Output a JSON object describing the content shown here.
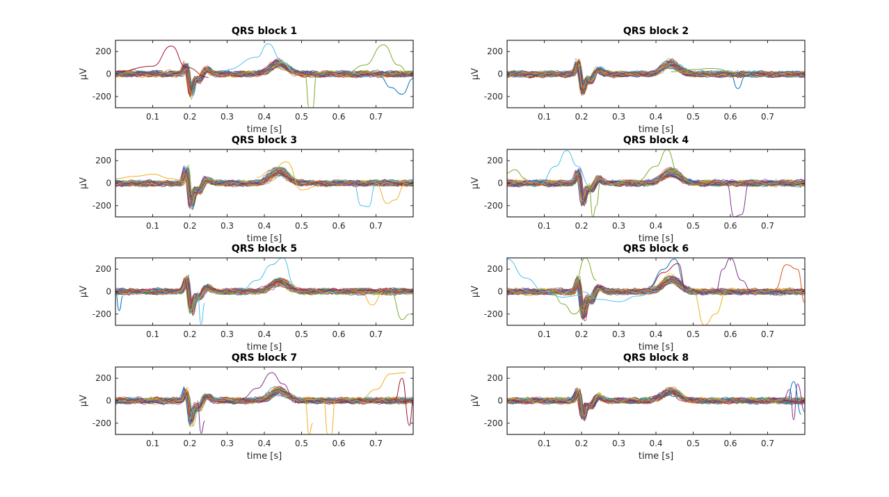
{
  "chart_data": [
    {
      "type": "line",
      "title": "QRS block 1",
      "xlabel": "time [s]",
      "ylabel": "μV",
      "xlim": [
        0,
        0.8
      ],
      "ylim": [
        -300,
        300
      ],
      "xticks": [
        "0.1",
        "0.2",
        "0.3",
        "0.4",
        "0.5",
        "0.6",
        "0.7"
      ],
      "yticks": [
        "200",
        "0",
        "-200"
      ],
      "series_count": 60,
      "waveform": {
        "q_depth": -180,
        "r_peak": 90,
        "s_depth": -90,
        "t_peak": 95
      },
      "outliers": [
        {
          "color": "#A2142F",
          "x": [
            0.0,
            0.1,
            0.15,
            0.19,
            0.25
          ],
          "y": [
            20,
            70,
            250,
            60,
            -30
          ]
        },
        {
          "color": "#4DBEEE",
          "x": [
            0.3,
            0.38,
            0.41,
            0.45,
            0.48
          ],
          "y": [
            40,
            150,
            270,
            100,
            20
          ]
        },
        {
          "color": "#77AC30",
          "x": [
            0.62,
            0.67,
            0.72,
            0.76,
            0.79
          ],
          "y": [
            10,
            80,
            260,
            80,
            0
          ]
        },
        {
          "color": "#77AC30",
          "x": [
            0.51,
            0.52,
            0.53,
            0.54
          ],
          "y": [
            -10,
            -300,
            -300,
            -10
          ]
        },
        {
          "color": "#0072BD",
          "x": [
            0.71,
            0.74,
            0.77,
            0.8
          ],
          "y": [
            -20,
            -120,
            -180,
            -40
          ]
        }
      ]
    },
    {
      "type": "line",
      "title": "QRS block 2",
      "xlabel": "time [s]",
      "ylabel": "μV",
      "xlim": [
        0,
        0.8
      ],
      "ylim": [
        -300,
        300
      ],
      "xticks": [
        "0.1",
        "0.2",
        "0.3",
        "0.4",
        "0.5",
        "0.6",
        "0.7"
      ],
      "yticks": [
        "200",
        "0",
        "-200"
      ],
      "series_count": 60,
      "waveform": {
        "q_depth": -160,
        "r_peak": 120,
        "s_depth": -110,
        "t_peak": 90
      },
      "outliers": [
        {
          "color": "#0072BD",
          "x": [
            0.6,
            0.62,
            0.64,
            0.66
          ],
          "y": [
            0,
            -130,
            -20,
            0
          ]
        },
        {
          "color": "#77AC30",
          "x": [
            0.44,
            0.5,
            0.55,
            0.62
          ],
          "y": [
            20,
            40,
            50,
            10
          ]
        }
      ]
    },
    {
      "type": "line",
      "title": "QRS block 3",
      "xlabel": "time [s]",
      "ylabel": "μV",
      "xlim": [
        0,
        0.8
      ],
      "ylim": [
        -300,
        300
      ],
      "xticks": [
        "0.1",
        "0.2",
        "0.3",
        "0.4",
        "0.5",
        "0.6",
        "0.7"
      ],
      "yticks": [
        "200",
        "0",
        "-200"
      ],
      "series_count": 60,
      "waveform": {
        "q_depth": -200,
        "r_peak": 140,
        "s_depth": -120,
        "t_peak": 110
      },
      "outliers": [
        {
          "color": "#EDB120",
          "x": [
            0.0,
            0.05,
            0.1,
            0.15,
            0.19
          ],
          "y": [
            40,
            60,
            80,
            40,
            10
          ]
        },
        {
          "color": "#EDB120",
          "x": [
            0.38,
            0.42,
            0.46,
            0.5,
            0.55
          ],
          "y": [
            50,
            120,
            190,
            -60,
            -20
          ]
        },
        {
          "color": "#4DBEEE",
          "x": [
            0.64,
            0.66,
            0.68,
            0.7
          ],
          "y": [
            0,
            -200,
            -210,
            0
          ]
        },
        {
          "color": "#EDB120",
          "x": [
            0.7,
            0.73,
            0.75,
            0.78
          ],
          "y": [
            0,
            -180,
            -150,
            0
          ]
        }
      ]
    },
    {
      "type": "line",
      "title": "QRS block 4",
      "xlabel": "time [s]",
      "ylabel": "μV",
      "xlim": [
        0,
        0.8
      ],
      "ylim": [
        -300,
        300
      ],
      "xticks": [
        "0.1",
        "0.2",
        "0.3",
        "0.4",
        "0.5",
        "0.6",
        "0.7"
      ],
      "yticks": [
        "200",
        "0",
        "-200"
      ],
      "series_count": 60,
      "waveform": {
        "q_depth": -180,
        "r_peak": 120,
        "s_depth": -110,
        "t_peak": 100
      },
      "outliers": [
        {
          "color": "#4DBEEE",
          "x": [
            0.09,
            0.13,
            0.16,
            0.19,
            0.22
          ],
          "y": [
            0,
            150,
            290,
            150,
            -20
          ]
        },
        {
          "color": "#77AC30",
          "x": [
            0.35,
            0.4,
            0.43,
            0.46,
            0.5
          ],
          "y": [
            20,
            150,
            300,
            80,
            0
          ]
        },
        {
          "color": "#77AC30",
          "x": [
            0.22,
            0.23,
            0.24,
            0.25
          ],
          "y": [
            0,
            -300,
            -200,
            0
          ]
        },
        {
          "color": "#7E2F8E",
          "x": [
            0.59,
            0.61,
            0.63,
            0.65
          ],
          "y": [
            0,
            -300,
            -280,
            0
          ]
        },
        {
          "color": "#77AC30",
          "x": [
            0.0,
            0.02,
            0.05
          ],
          "y": [
            90,
            120,
            40
          ]
        }
      ]
    },
    {
      "type": "line",
      "title": "QRS block 5",
      "xlabel": "time [s]",
      "ylabel": "μV",
      "xlim": [
        0,
        0.8
      ],
      "ylim": [
        -300,
        300
      ],
      "xticks": [
        "0.1",
        "0.2",
        "0.3",
        "0.4",
        "0.5",
        "0.6",
        "0.7"
      ],
      "yticks": [
        "200",
        "0",
        "-200"
      ],
      "series_count": 60,
      "waveform": {
        "q_depth": -170,
        "r_peak": 130,
        "s_depth": -100,
        "t_peak": 90
      },
      "outliers": [
        {
          "color": "#4DBEEE",
          "x": [
            0.34,
            0.38,
            0.42,
            0.45,
            0.48
          ],
          "y": [
            20,
            100,
            240,
            300,
            60
          ]
        },
        {
          "color": "#4DBEEE",
          "x": [
            0.22,
            0.23,
            0.24
          ],
          "y": [
            0,
            -290,
            -100
          ]
        },
        {
          "color": "#77AC30",
          "x": [
            0.74,
            0.77,
            0.79
          ],
          "y": [
            0,
            -250,
            -200
          ]
        },
        {
          "color": "#0072BD",
          "x": [
            0.0,
            0.01,
            0.02
          ],
          "y": [
            0,
            -170,
            -40
          ]
        },
        {
          "color": "#EDB120",
          "x": [
            0.66,
            0.69,
            0.72
          ],
          "y": [
            0,
            -120,
            0
          ]
        }
      ]
    },
    {
      "type": "line",
      "title": "QRS block 6",
      "xlabel": "time [s]",
      "ylabel": "μV",
      "xlim": [
        0,
        0.8
      ],
      "ylim": [
        -300,
        300
      ],
      "xticks": [
        "0.1",
        "0.2",
        "0.3",
        "0.4",
        "0.5",
        "0.6",
        "0.7"
      ],
      "yticks": [
        "200",
        "0",
        "-200"
      ],
      "series_count": 60,
      "waveform": {
        "q_depth": -220,
        "r_peak": 130,
        "s_depth": -140,
        "t_peak": 110
      },
      "outliers": [
        {
          "color": "#4DBEEE",
          "x": [
            0.0,
            0.05,
            0.1,
            0.15,
            0.2
          ],
          "y": [
            290,
            120,
            0,
            -50,
            -30
          ]
        },
        {
          "color": "#77AC30",
          "x": [
            0.12,
            0.15,
            0.18,
            0.21,
            0.24
          ],
          "y": [
            0,
            -110,
            -200,
            -120,
            0
          ]
        },
        {
          "color": "#77AC30",
          "x": [
            0.18,
            0.21,
            0.24
          ],
          "y": [
            50,
            300,
            100
          ]
        },
        {
          "color": "#0072BD",
          "x": [
            0.38,
            0.42,
            0.45,
            0.48
          ],
          "y": [
            40,
            200,
            290,
            40
          ]
        },
        {
          "color": "#A2142F",
          "x": [
            0.38,
            0.42,
            0.46,
            0.48
          ],
          "y": [
            30,
            170,
            250,
            20
          ]
        },
        {
          "color": "#7E2F8E",
          "x": [
            0.56,
            0.58,
            0.6,
            0.63,
            0.66
          ],
          "y": [
            0,
            200,
            300,
            100,
            -20
          ]
        },
        {
          "color": "#D95319",
          "x": [
            0.72,
            0.75,
            0.78,
            0.8
          ],
          "y": [
            20,
            240,
            200,
            -100
          ]
        },
        {
          "color": "#EDB120",
          "x": [
            0.5,
            0.53,
            0.56,
            0.59
          ],
          "y": [
            0,
            -300,
            -200,
            0
          ]
        },
        {
          "color": "#4DBEEE",
          "x": [
            0.2,
            0.25,
            0.3,
            0.35,
            0.4
          ],
          "y": [
            0,
            -70,
            -90,
            -40,
            0
          ]
        }
      ]
    },
    {
      "type": "line",
      "title": "QRS block 7",
      "xlabel": "time [s]",
      "ylabel": "μV",
      "xlim": [
        0,
        0.8
      ],
      "ylim": [
        -300,
        300
      ],
      "xticks": [
        "0.1",
        "0.2",
        "0.3",
        "0.4",
        "0.5",
        "0.6",
        "0.7"
      ],
      "yticks": [
        "200",
        "0",
        "-200"
      ],
      "series_count": 60,
      "waveform": {
        "q_depth": -200,
        "r_peak": 110,
        "s_depth": -110,
        "t_peak": 90
      },
      "outliers": [
        {
          "color": "#7E2F8E",
          "x": [
            0.34,
            0.38,
            0.42,
            0.45,
            0.48
          ],
          "y": [
            20,
            110,
            250,
            150,
            20
          ]
        },
        {
          "color": "#EDB120",
          "x": [
            0.51,
            0.52,
            0.53
          ],
          "y": [
            0,
            -300,
            -200
          ]
        },
        {
          "color": "#EDB120",
          "x": [
            0.56,
            0.57,
            0.58,
            0.59
          ],
          "y": [
            0,
            -300,
            -300,
            0
          ]
        },
        {
          "color": "#EDB120",
          "x": [
            0.66,
            0.7,
            0.74,
            0.78
          ],
          "y": [
            20,
            100,
            240,
            250
          ]
        },
        {
          "color": "#7E2F8E",
          "x": [
            0.22,
            0.23,
            0.24
          ],
          "y": [
            0,
            -290,
            -180
          ]
        },
        {
          "color": "#A2142F",
          "x": [
            0.75,
            0.77,
            0.79,
            0.8
          ],
          "y": [
            0,
            200,
            -220,
            0
          ]
        }
      ]
    },
    {
      "type": "line",
      "title": "QRS block 8",
      "xlabel": "time [s]",
      "ylabel": "μV",
      "xlim": [
        0,
        0.8
      ],
      "ylim": [
        -300,
        300
      ],
      "xticks": [
        "0.1",
        "0.2",
        "0.3",
        "0.4",
        "0.5",
        "0.6",
        "0.7"
      ],
      "yticks": [
        "200",
        "0",
        "-200"
      ],
      "series_count": 60,
      "waveform": {
        "q_depth": -150,
        "r_peak": 100,
        "s_depth": -90,
        "t_peak": 85
      },
      "outliers": [
        {
          "color": "#7E2F8E",
          "x": [
            0.74,
            0.76,
            0.77,
            0.78,
            0.8
          ],
          "y": [
            0,
            100,
            -170,
            150,
            -100
          ]
        },
        {
          "color": "#0072BD",
          "x": [
            0.75,
            0.77,
            0.79
          ],
          "y": [
            -30,
            170,
            -120
          ]
        }
      ]
    }
  ],
  "colors": [
    "#0072BD",
    "#D95319",
    "#EDB120",
    "#7E2F8E",
    "#77AC30",
    "#4DBEEE",
    "#A2142F"
  ]
}
